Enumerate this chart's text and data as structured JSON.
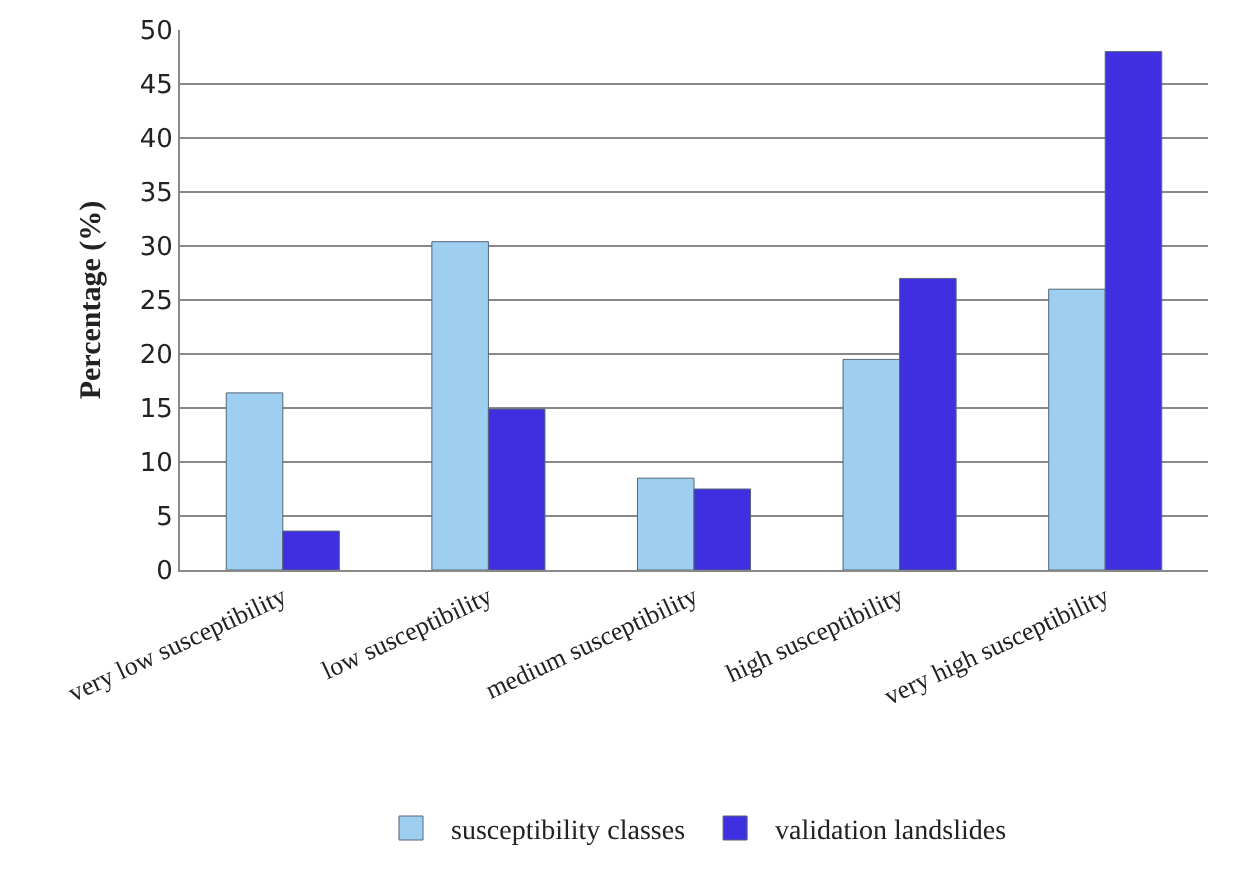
{
  "chart_data": {
    "type": "bar",
    "ylabel": "Percentage (%)",
    "categories": [
      "very low susceptibility",
      "low susceptibility",
      "medium susceptibility",
      "high susceptibility",
      "very high susceptibility"
    ],
    "series": [
      {
        "name": "susceptibility classes",
        "color": "#9ecff0",
        "values": [
          16.4,
          30.4,
          8.5,
          19.5,
          26
        ]
      },
      {
        "name": "validation landslides",
        "color": "#3f2fe0",
        "values": [
          3.6,
          14.9,
          7.5,
          27,
          48
        ]
      }
    ],
    "ylim": [
      0,
      50
    ],
    "yticks": [
      0,
      5,
      10,
      15,
      20,
      25,
      30,
      35,
      40,
      45,
      50
    ],
    "grid": "y",
    "legend": "bottom"
  }
}
